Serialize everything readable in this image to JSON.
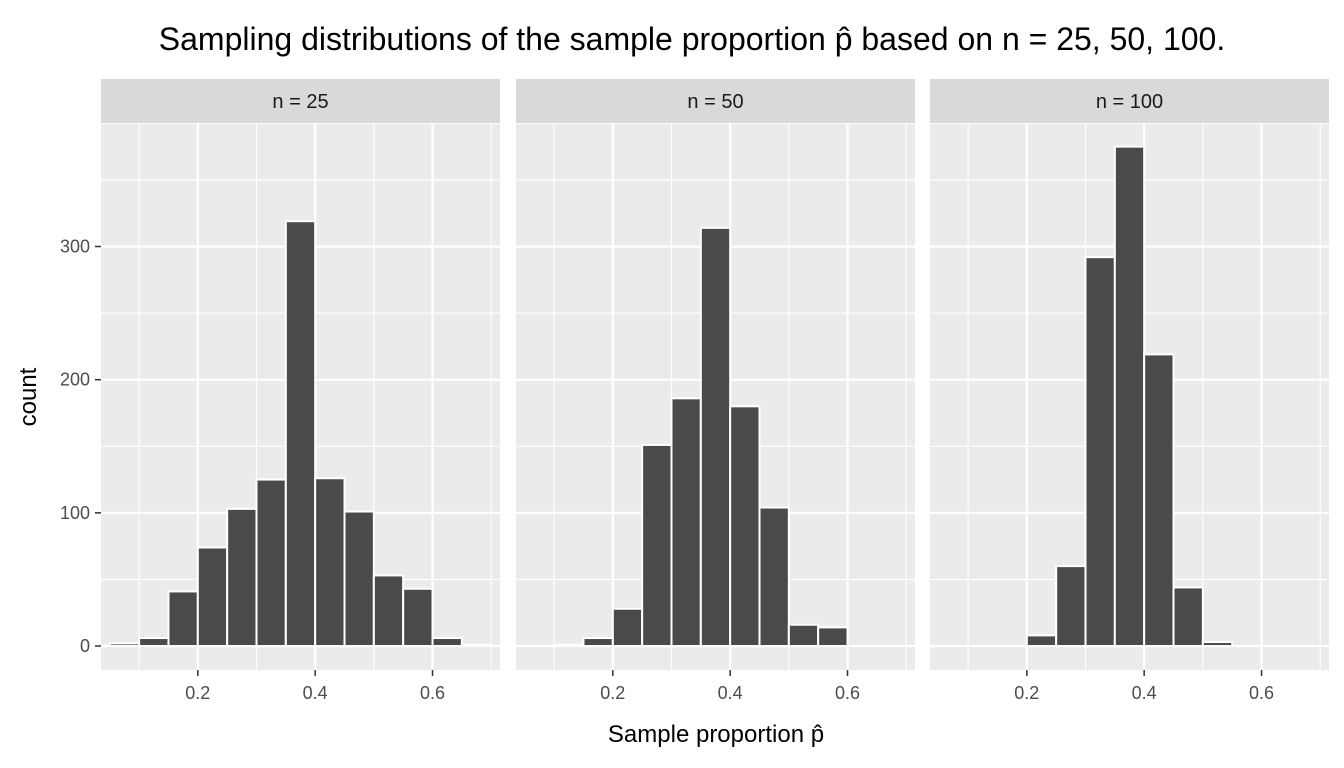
{
  "chart_data": {
    "type": "bar",
    "title": "Sampling distributions of the sample proportion p̂ based on n = 25, 50, 100.",
    "xlabel": "Sample proportion p̂",
    "ylabel": "count",
    "xlim": [
      0.035,
      0.715
    ],
    "ylim": [
      -18,
      392
    ],
    "xticks": [
      0.2,
      0.4,
      0.6
    ],
    "xtick_labels": [
      "0.2",
      "0.4",
      "0.6"
    ],
    "yticks": [
      0,
      100,
      200,
      300
    ],
    "ytick_labels": [
      "0",
      "100",
      "200",
      "300"
    ],
    "grid": true,
    "bin_width": 0.05,
    "panels": [
      {
        "label": "n = 25",
        "bin_centers": [
          0.075,
          0.125,
          0.175,
          0.225,
          0.275,
          0.325,
          0.375,
          0.425,
          0.475,
          0.525,
          0.575,
          0.625,
          0.675
        ],
        "counts": [
          2,
          6,
          41,
          74,
          103,
          125,
          319,
          126,
          101,
          53,
          43,
          6,
          1
        ]
      },
      {
        "label": "n = 50",
        "bin_centers": [
          0.075,
          0.125,
          0.175,
          0.225,
          0.275,
          0.325,
          0.375,
          0.425,
          0.475,
          0.525,
          0.575,
          0.625,
          0.675
        ],
        "counts": [
          0,
          1,
          6,
          28,
          151,
          186,
          314,
          180,
          104,
          16,
          14,
          0,
          0
        ]
      },
      {
        "label": "n = 100",
        "bin_centers": [
          0.175,
          0.225,
          0.275,
          0.325,
          0.375,
          0.425,
          0.475,
          0.525,
          0.575,
          0.625
        ],
        "counts": [
          0,
          8,
          60,
          292,
          375,
          219,
          44,
          3,
          0,
          0
        ]
      }
    ]
  }
}
